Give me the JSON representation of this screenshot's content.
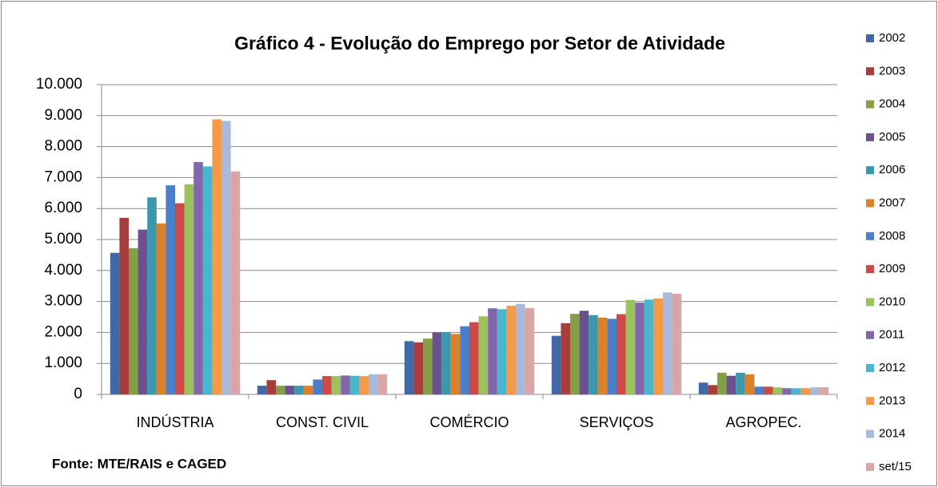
{
  "chart_data": {
    "type": "bar",
    "title": "Gráfico 4 - Evolução do Emprego por Setor de Atividade",
    "source": "Fonte: MTE/RAIS e CAGED",
    "categories": [
      "INDÚSTRIA",
      "CONST. CIVIL",
      "COMÉRCIO",
      "SERVIÇOS",
      "AGROPEC."
    ],
    "series": [
      {
        "name": "2002",
        "color": "#4069a6",
        "values": [
          4570,
          280,
          1720,
          1890,
          380
        ]
      },
      {
        "name": "2003",
        "color": "#a63f3c",
        "values": [
          5700,
          460,
          1680,
          2300,
          300
        ]
      },
      {
        "name": "2004",
        "color": "#83a044",
        "values": [
          4720,
          280,
          1800,
          2600,
          700
        ]
      },
      {
        "name": "2005",
        "color": "#6b4f8f",
        "values": [
          5320,
          280,
          2000,
          2700,
          600
        ]
      },
      {
        "name": "2006",
        "color": "#3a97ad",
        "values": [
          6360,
          280,
          2000,
          2560,
          700
        ]
      },
      {
        "name": "2007",
        "color": "#d8822c",
        "values": [
          5520,
          280,
          1950,
          2480,
          650
        ]
      },
      {
        "name": "2008",
        "color": "#4a7ec8",
        "values": [
          6750,
          480,
          2200,
          2440,
          250
        ]
      },
      {
        "name": "2009",
        "color": "#cd4a47",
        "values": [
          6170,
          590,
          2330,
          2590,
          250
        ]
      },
      {
        "name": "2010",
        "color": "#9cc35b",
        "values": [
          6780,
          590,
          2520,
          3050,
          230
        ]
      },
      {
        "name": "2011",
        "color": "#8166a9",
        "values": [
          7500,
          610,
          2780,
          2960,
          200
        ]
      },
      {
        "name": "2012",
        "color": "#4bb5ce",
        "values": [
          7360,
          600,
          2750,
          3060,
          200
        ]
      },
      {
        "name": "2013",
        "color": "#f59a48",
        "values": [
          8880,
          590,
          2860,
          3100,
          200
        ]
      },
      {
        "name": "2014",
        "color": "#a9b9dc",
        "values": [
          8830,
          650,
          2920,
          3290,
          230
        ]
      },
      {
        "name": "set/15",
        "color": "#daa6a5",
        "values": [
          7200,
          650,
          2790,
          3250,
          230
        ]
      }
    ],
    "ylim": [
      0,
      10000
    ],
    "yticks": [
      0,
      {
        "value": 1000,
        "label": "1.000"
      },
      {
        "value": 2000,
        "label": "2.000"
      },
      {
        "value": 3000,
        "label": "3.000"
      },
      {
        "value": 4000,
        "label": "4.000"
      },
      {
        "value": 5000,
        "label": "5.000"
      },
      {
        "value": 6000,
        "label": "6.000"
      },
      {
        "value": 7000,
        "label": "7.000"
      },
      {
        "value": 8000,
        "label": "8.000"
      },
      {
        "value": 9000,
        "label": "9.000"
      },
      {
        "value": 10000,
        "label": "10.000"
      }
    ],
    "grid": true,
    "legend": "right"
  }
}
